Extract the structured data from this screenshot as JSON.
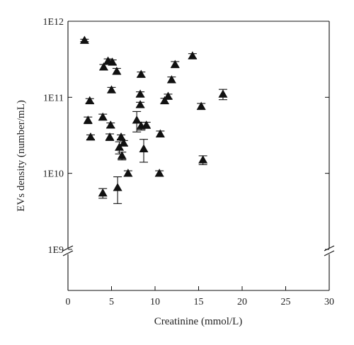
{
  "chart_data": {
    "type": "scatter",
    "title": "",
    "xlabel": "Creatinine (mmol/L)",
    "ylabel": "EVs density (number/mL)",
    "xlim": [
      0,
      30
    ],
    "ylim": [
      1000000000,
      1000000000000
    ],
    "yscale": "log",
    "axis_break": "y-axis below 1E9",
    "grid": false,
    "legend": "none",
    "marker": "filled-triangle",
    "marker_color": "#111111",
    "xticks": [
      "0",
      "5",
      "10",
      "15",
      "20",
      "25",
      "30"
    ],
    "yticks": [
      {
        "label": "1E9",
        "value": 1000000000
      },
      {
        "label": "1E10",
        "value": 10000000000
      },
      {
        "label": "1E11",
        "value": 100000000000
      },
      {
        "label": "1E12",
        "value": 1000000000000
      }
    ],
    "points": [
      {
        "x": 1.9,
        "y": 560000000000,
        "err_low": 20000000000,
        "err_high": 20000000000
      },
      {
        "x": 2.3,
        "y": 50000000000,
        "err_low": 5000000000,
        "err_high": 5000000000
      },
      {
        "x": 2.5,
        "y": 90000000000,
        "err_low": 6000000000,
        "err_high": 6000000000
      },
      {
        "x": 2.6,
        "y": 30000000000,
        "err_low": 2000000000,
        "err_high": 2000000000
      },
      {
        "x": 4.1,
        "y": 250000000000,
        "err_low": 20000000000,
        "err_high": 20000000000
      },
      {
        "x": 4.0,
        "y": 55000000000,
        "err_low": 5000000000,
        "err_high": 5000000000
      },
      {
        "x": 4.0,
        "y": 5500000000,
        "err_low": 800000000,
        "err_high": 800000000
      },
      {
        "x": 4.6,
        "y": 300000000000,
        "err_low": 20000000000,
        "err_high": 20000000000
      },
      {
        "x": 4.8,
        "y": 30000000000,
        "err_low": 3000000000,
        "err_high": 3000000000
      },
      {
        "x": 4.9,
        "y": 43000000000,
        "err_low": 3000000000,
        "err_high": 3000000000
      },
      {
        "x": 5.0,
        "y": 125000000000,
        "err_low": 10000000000,
        "err_high": 10000000000
      },
      {
        "x": 5.1,
        "y": 290000000000,
        "err_low": 20000000000,
        "err_high": 20000000000
      },
      {
        "x": 5.6,
        "y": 220000000000,
        "err_low": 20000000000,
        "err_high": 20000000000
      },
      {
        "x": 5.7,
        "y": 6500000000,
        "err_low": 2500000000,
        "err_high": 2500000000
      },
      {
        "x": 5.9,
        "y": 22000000000,
        "err_low": 4000000000,
        "err_high": 4000000000
      },
      {
        "x": 6.1,
        "y": 30000000000,
        "err_low": 2000000000,
        "err_high": 2000000000
      },
      {
        "x": 6.2,
        "y": 17000000000,
        "err_low": 2000000000,
        "err_high": 2000000000
      },
      {
        "x": 6.4,
        "y": 25000000000,
        "err_low": 2000000000,
        "err_high": 2000000000
      },
      {
        "x": 6.9,
        "y": 10000000000,
        "err_low": 800000000,
        "err_high": 800000000
      },
      {
        "x": 7.9,
        "y": 50000000000,
        "err_low": 15000000000,
        "err_high": 15000000000
      },
      {
        "x": 8.3,
        "y": 110000000000,
        "err_low": 8000000000,
        "err_high": 8000000000
      },
      {
        "x": 8.3,
        "y": 80000000000,
        "err_low": 6000000000,
        "err_high": 6000000000
      },
      {
        "x": 8.4,
        "y": 200000000000,
        "err_low": 15000000000,
        "err_high": 15000000000
      },
      {
        "x": 8.4,
        "y": 42000000000,
        "err_low": 5000000000,
        "err_high": 5000000000
      },
      {
        "x": 8.7,
        "y": 21000000000,
        "err_low": 7000000000,
        "err_high": 7000000000
      },
      {
        "x": 9.0,
        "y": 43000000000,
        "err_low": 4000000000,
        "err_high": 4000000000
      },
      {
        "x": 10.5,
        "y": 10000000000,
        "err_low": 800000000,
        "err_high": 800000000
      },
      {
        "x": 10.6,
        "y": 33000000000,
        "err_low": 3000000000,
        "err_high": 3000000000
      },
      {
        "x": 11.1,
        "y": 90000000000,
        "err_low": 7000000000,
        "err_high": 7000000000
      },
      {
        "x": 11.5,
        "y": 103000000000,
        "err_low": 7000000000,
        "err_high": 7000000000
      },
      {
        "x": 11.9,
        "y": 170000000000,
        "err_low": 15000000000,
        "err_high": 15000000000
      },
      {
        "x": 12.3,
        "y": 270000000000,
        "err_low": 25000000000,
        "err_high": 25000000000
      },
      {
        "x": 14.3,
        "y": 350000000000,
        "err_low": 25000000000,
        "err_high": 25000000000
      },
      {
        "x": 15.3,
        "y": 76000000000,
        "err_low": 7000000000,
        "err_high": 7000000000
      },
      {
        "x": 15.5,
        "y": 15000000000,
        "err_low": 2000000000,
        "err_high": 2000000000
      },
      {
        "x": 17.8,
        "y": 110000000000,
        "err_low": 17000000000,
        "err_high": 17000000000
      }
    ]
  }
}
